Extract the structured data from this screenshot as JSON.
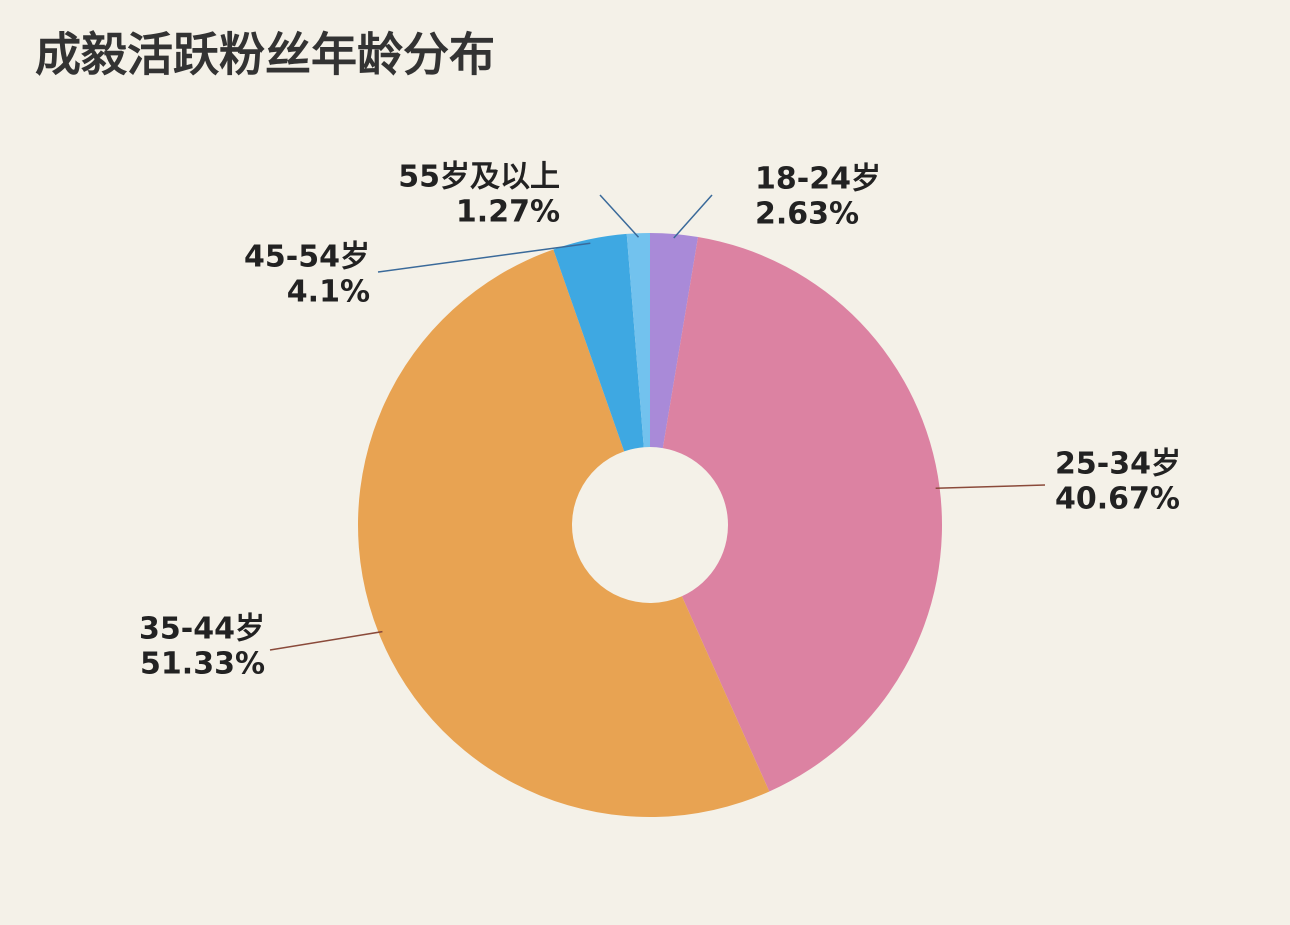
{
  "chart_data": {
    "type": "donut",
    "title": "成毅活跃粉丝年龄分布",
    "categories": [
      "18-24岁",
      "25-34岁",
      "35-44岁",
      "45-54岁",
      "55岁及以上"
    ],
    "values": [
      2.63,
      40.67,
      51.33,
      4.1,
      1.27
    ],
    "value_labels": [
      "2.63%",
      "40.67%",
      "51.33%",
      "4.1%",
      "1.27%"
    ],
    "colors": [
      "#a98ad8",
      "#dc82a2",
      "#e8a352",
      "#3ea8e2",
      "#72c2ee"
    ]
  }
}
